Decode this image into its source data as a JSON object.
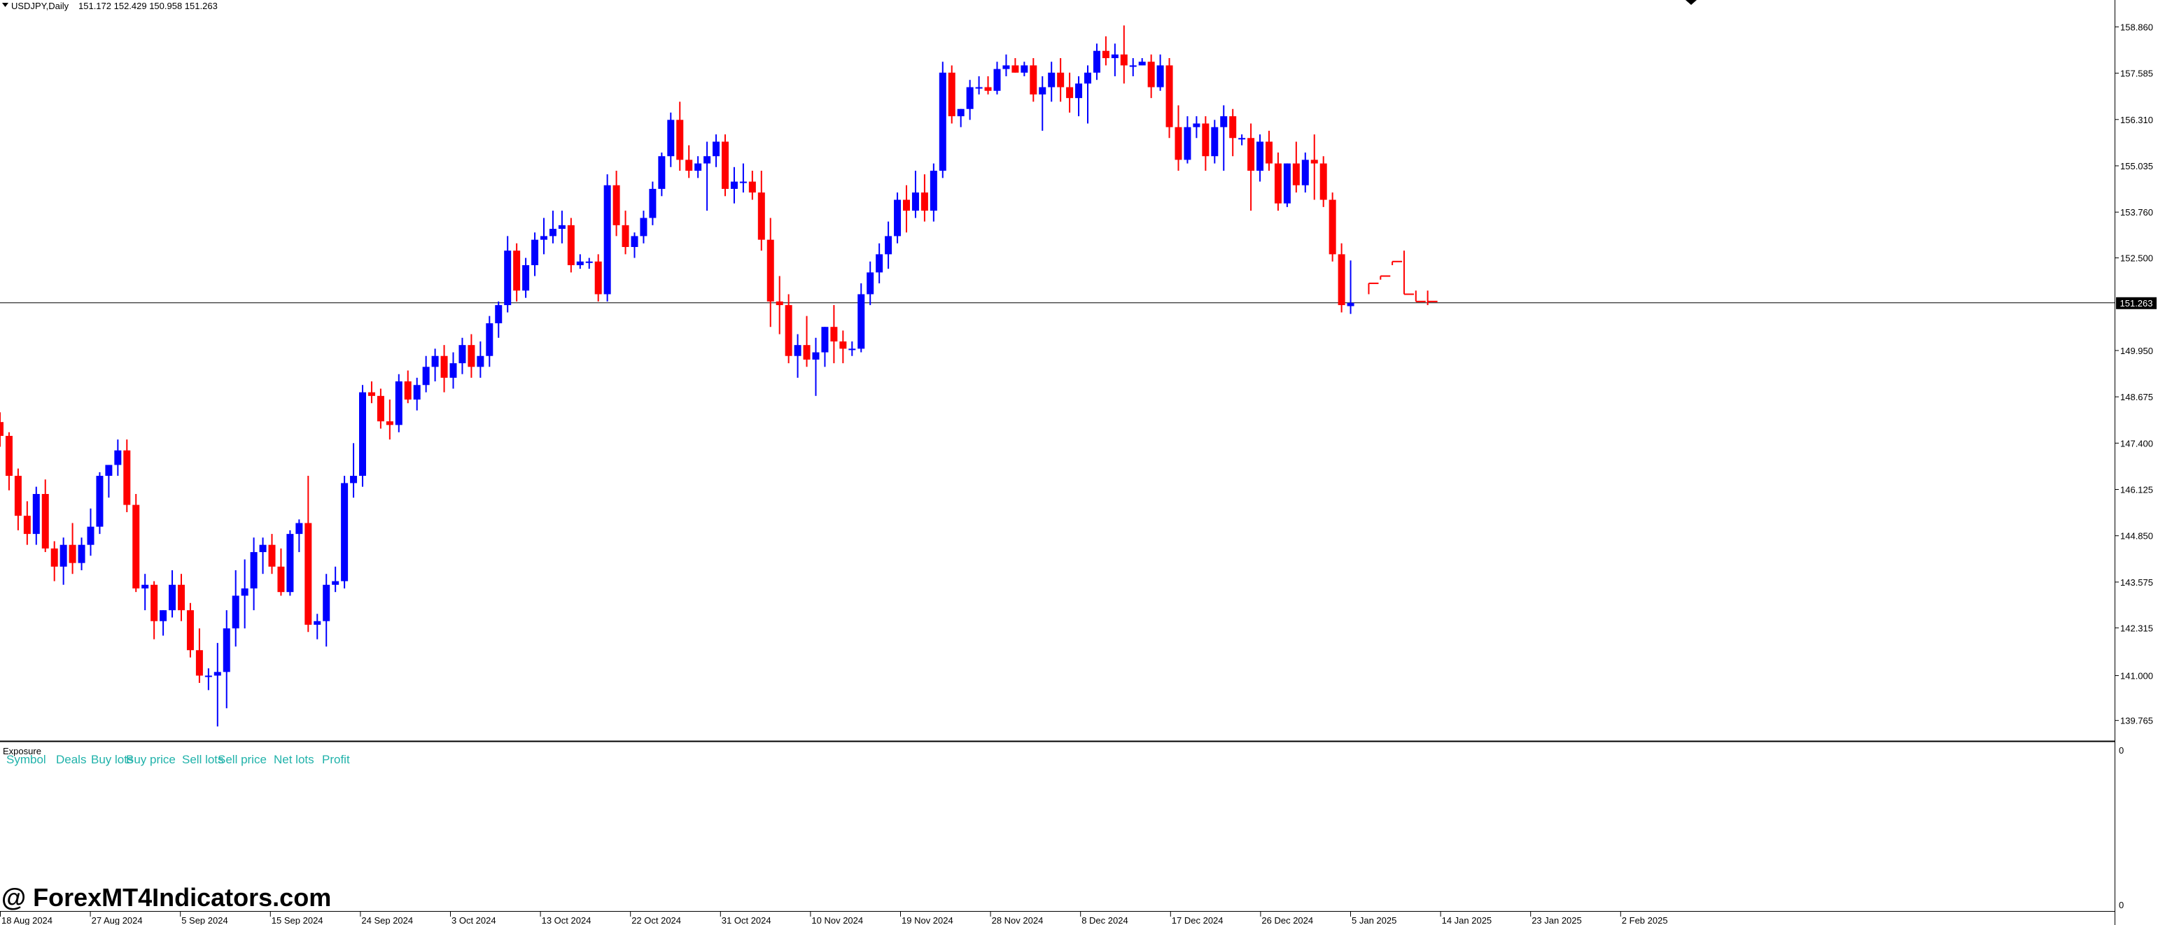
{
  "chart_header": {
    "symbol": "USDJPY,Daily",
    "ohlc": "151.172 152.429 150.958 151.263"
  },
  "current_price_label": "151.263",
  "indicator_panel": {
    "title": "Exposure",
    "columns": [
      "Symbol",
      "Deals",
      "Buy lots",
      "Buy price",
      "Sell lots",
      "Sell price",
      "Net lots",
      "Profit"
    ],
    "scale_top": "0",
    "scale_bottom": "0"
  },
  "watermark": "@ ForexMT4Indicators.com",
  "colors": {
    "bull": "#0000ff",
    "bear": "#ff0000",
    "background": "#ffffff",
    "axis": "#000000",
    "indicator_text": "#20b2aa"
  },
  "chart_data": {
    "type": "candlestick",
    "title": "USDJPY,Daily",
    "ylim": [
      139.2,
      159.6
    ],
    "y_ticks": [
      "158.860",
      "157.585",
      "156.310",
      "155.035",
      "153.760",
      "152.500",
      "149.950",
      "148.675",
      "147.400",
      "146.125",
      "144.850",
      "143.575",
      "142.315",
      "141.000",
      "139.765"
    ],
    "x_ticks": [
      "18 Aug 2024",
      "27 Aug 2024",
      "5 Sep 2024",
      "15 Sep 2024",
      "24 Sep 2024",
      "3 Oct 2024",
      "13 Oct 2024",
      "22 Oct 2024",
      "31 Oct 2024",
      "10 Nov 2024",
      "19 Nov 2024",
      "28 Nov 2024",
      "8 Dec 2024",
      "17 Dec 2024",
      "26 Dec 2024",
      "5 Jan 2025",
      "14 Jan 2025",
      "23 Jan 2025",
      "2 Feb 2025"
    ],
    "current_price": 151.263,
    "candles": [
      [
        147.98,
        148.25,
        147.3,
        147.6
      ],
      [
        147.6,
        147.7,
        146.1,
        146.5
      ],
      [
        146.5,
        146.7,
        145.0,
        145.4
      ],
      [
        145.4,
        145.8,
        144.6,
        144.9
      ],
      [
        144.9,
        146.2,
        144.6,
        146.0
      ],
      [
        146.0,
        146.4,
        144.4,
        144.5
      ],
      [
        144.5,
        144.7,
        143.6,
        144.0
      ],
      [
        144.0,
        144.8,
        143.5,
        144.6
      ],
      [
        144.6,
        145.2,
        143.8,
        144.1
      ],
      [
        144.1,
        144.8,
        143.9,
        144.6
      ],
      [
        144.6,
        145.6,
        144.3,
        145.1
      ],
      [
        145.1,
        146.6,
        144.9,
        146.5
      ],
      [
        146.5,
        146.8,
        145.9,
        146.8
      ],
      [
        146.8,
        147.5,
        146.5,
        147.2
      ],
      [
        147.2,
        147.5,
        145.5,
        145.7
      ],
      [
        145.7,
        146.0,
        143.3,
        143.4
      ],
      [
        143.4,
        143.8,
        142.8,
        143.5
      ],
      [
        143.5,
        143.6,
        142.0,
        142.5
      ],
      [
        142.5,
        142.8,
        142.1,
        142.8
      ],
      [
        142.8,
        143.9,
        142.6,
        143.5
      ],
      [
        143.5,
        143.8,
        142.5,
        142.8
      ],
      [
        142.8,
        143.0,
        141.5,
        141.7
      ],
      [
        141.7,
        142.3,
        140.8,
        141.0
      ],
      [
        141.0,
        141.2,
        140.6,
        141.0
      ],
      [
        141.0,
        141.9,
        139.6,
        141.1
      ],
      [
        141.1,
        142.8,
        140.1,
        142.3
      ],
      [
        142.3,
        143.9,
        141.8,
        143.2
      ],
      [
        143.2,
        144.2,
        142.3,
        143.4
      ],
      [
        143.4,
        144.8,
        142.8,
        144.4
      ],
      [
        144.4,
        144.8,
        143.8,
        144.6
      ],
      [
        144.6,
        144.9,
        143.8,
        144.0
      ],
      [
        144.0,
        144.5,
        143.2,
        143.3
      ],
      [
        143.3,
        145.0,
        143.2,
        144.9
      ],
      [
        144.9,
        145.3,
        144.4,
        145.2
      ],
      [
        145.2,
        146.5,
        142.2,
        142.4
      ],
      [
        142.4,
        142.7,
        142.0,
        142.5
      ],
      [
        142.5,
        143.8,
        141.8,
        143.5
      ],
      [
        143.5,
        144.0,
        143.3,
        143.6
      ],
      [
        143.6,
        146.5,
        143.4,
        146.3
      ],
      [
        146.3,
        147.4,
        145.9,
        146.5
      ],
      [
        146.5,
        149.0,
        146.2,
        148.8
      ],
      [
        148.8,
        149.1,
        148.5,
        148.7
      ],
      [
        148.7,
        148.9,
        147.8,
        148.0
      ],
      [
        148.0,
        148.6,
        147.5,
        147.9
      ],
      [
        147.9,
        149.3,
        147.7,
        149.1
      ],
      [
        149.1,
        149.4,
        148.5,
        148.6
      ],
      [
        148.6,
        149.2,
        148.3,
        149.0
      ],
      [
        149.0,
        149.8,
        148.8,
        149.5
      ],
      [
        149.5,
        150.0,
        149.1,
        149.8
      ],
      [
        149.8,
        150.1,
        148.8,
        149.2
      ],
      [
        149.2,
        149.9,
        148.9,
        149.6
      ],
      [
        149.6,
        150.3,
        149.3,
        150.1
      ],
      [
        150.1,
        150.4,
        149.2,
        149.5
      ],
      [
        149.5,
        150.2,
        149.2,
        149.8
      ],
      [
        149.8,
        150.9,
        149.5,
        150.7
      ],
      [
        150.7,
        151.3,
        150.3,
        151.2
      ],
      [
        151.2,
        153.1,
        151.0,
        152.7
      ],
      [
        152.7,
        152.9,
        151.3,
        151.6
      ],
      [
        151.6,
        152.5,
        151.4,
        152.3
      ],
      [
        152.3,
        153.2,
        152.0,
        153.0
      ],
      [
        153.0,
        153.6,
        152.6,
        153.1
      ],
      [
        153.1,
        153.8,
        152.9,
        153.3
      ],
      [
        153.3,
        153.8,
        152.9,
        153.4
      ],
      [
        153.4,
        153.6,
        152.1,
        152.3
      ],
      [
        152.3,
        152.6,
        152.2,
        152.4
      ],
      [
        152.4,
        152.5,
        152.2,
        152.4
      ],
      [
        152.4,
        152.6,
        151.3,
        151.5
      ],
      [
        151.5,
        154.8,
        151.3,
        154.5
      ],
      [
        154.5,
        154.9,
        153.1,
        153.4
      ],
      [
        153.4,
        153.8,
        152.6,
        152.8
      ],
      [
        152.8,
        153.2,
        152.5,
        153.1
      ],
      [
        153.1,
        153.8,
        152.9,
        153.6
      ],
      [
        153.6,
        154.6,
        153.4,
        154.4
      ],
      [
        154.4,
        155.4,
        154.2,
        155.3
      ],
      [
        155.3,
        156.5,
        155.0,
        156.3
      ],
      [
        156.3,
        156.8,
        154.9,
        155.2
      ],
      [
        155.2,
        155.6,
        154.7,
        154.9
      ],
      [
        154.9,
        155.3,
        154.7,
        155.1
      ],
      [
        155.1,
        155.7,
        153.8,
        155.3
      ],
      [
        155.3,
        155.9,
        155.0,
        155.7
      ],
      [
        155.7,
        155.9,
        154.2,
        154.4
      ],
      [
        154.4,
        155.0,
        154.0,
        154.6
      ],
      [
        154.6,
        155.1,
        154.3,
        154.6
      ],
      [
        154.6,
        154.9,
        154.1,
        154.3
      ],
      [
        154.3,
        154.9,
        152.7,
        153.0
      ],
      [
        153.0,
        153.6,
        150.6,
        151.3
      ],
      [
        151.3,
        152.0,
        150.4,
        151.2
      ],
      [
        151.2,
        151.5,
        149.6,
        149.8
      ],
      [
        149.8,
        150.4,
        149.2,
        150.1
      ],
      [
        150.1,
        150.9,
        149.5,
        149.7
      ],
      [
        149.7,
        150.3,
        148.7,
        149.9
      ],
      [
        149.9,
        150.6,
        149.5,
        150.6
      ],
      [
        150.6,
        151.2,
        149.6,
        150.2
      ],
      [
        150.2,
        150.5,
        149.6,
        150.0
      ],
      [
        150.0,
        150.2,
        149.8,
        150.0
      ],
      [
        150.0,
        151.8,
        149.9,
        151.5
      ],
      [
        151.5,
        152.4,
        151.2,
        152.1
      ],
      [
        152.1,
        152.9,
        151.8,
        152.6
      ],
      [
        152.6,
        153.5,
        152.2,
        153.1
      ],
      [
        153.1,
        154.3,
        152.9,
        154.1
      ],
      [
        154.1,
        154.5,
        153.2,
        153.8
      ],
      [
        153.8,
        154.9,
        153.6,
        154.3
      ],
      [
        154.3,
        154.8,
        153.5,
        153.8
      ],
      [
        153.8,
        155.1,
        153.5,
        154.9
      ],
      [
        154.9,
        157.9,
        154.7,
        157.6
      ],
      [
        157.6,
        157.8,
        156.2,
        156.4
      ],
      [
        156.4,
        156.6,
        156.1,
        156.6
      ],
      [
        156.6,
        157.4,
        156.3,
        157.2
      ],
      [
        157.2,
        157.5,
        157.0,
        157.2
      ],
      [
        157.2,
        157.5,
        157.0,
        157.1
      ],
      [
        157.1,
        157.9,
        157.0,
        157.7
      ],
      [
        157.7,
        158.1,
        157.5,
        157.8
      ],
      [
        157.8,
        158.0,
        157.6,
        157.6
      ],
      [
        157.6,
        157.9,
        157.5,
        157.8
      ],
      [
        157.8,
        158.0,
        156.8,
        157.0
      ],
      [
        157.0,
        157.5,
        156.0,
        157.2
      ],
      [
        157.2,
        157.9,
        156.8,
        157.6
      ],
      [
        157.6,
        158.0,
        156.8,
        157.2
      ],
      [
        157.2,
        157.6,
        156.5,
        156.9
      ],
      [
        156.9,
        157.5,
        156.4,
        157.3
      ],
      [
        157.3,
        157.8,
        156.2,
        157.6
      ],
      [
        157.6,
        158.4,
        157.4,
        158.2
      ],
      [
        158.2,
        158.6,
        157.8,
        158.0
      ],
      [
        158.0,
        158.4,
        157.5,
        158.1
      ],
      [
        158.1,
        158.9,
        157.3,
        157.8
      ],
      [
        157.8,
        158.0,
        157.5,
        157.8
      ],
      [
        157.8,
        158.0,
        157.8,
        157.9
      ],
      [
        157.9,
        158.1,
        156.9,
        157.2
      ],
      [
        157.2,
        158.1,
        157.1,
        157.8
      ],
      [
        157.8,
        158.0,
        155.8,
        156.1
      ],
      [
        156.1,
        156.7,
        154.9,
        155.2
      ],
      [
        155.2,
        156.4,
        155.1,
        156.1
      ],
      [
        156.1,
        156.4,
        155.8,
        156.2
      ],
      [
        156.2,
        156.4,
        154.9,
        155.3
      ],
      [
        155.3,
        156.3,
        155.1,
        156.1
      ],
      [
        156.1,
        156.7,
        154.9,
        156.4
      ],
      [
        156.4,
        156.6,
        155.3,
        155.8
      ],
      [
        155.8,
        155.9,
        155.6,
        155.8
      ],
      [
        155.8,
        156.2,
        153.8,
        154.9
      ],
      [
        154.9,
        155.9,
        154.6,
        155.7
      ],
      [
        155.7,
        156.0,
        154.9,
        155.1
      ],
      [
        155.1,
        155.4,
        153.8,
        154.0
      ],
      [
        154.0,
        155.1,
        153.9,
        155.1
      ],
      [
        155.1,
        155.7,
        154.3,
        154.5
      ],
      [
        154.5,
        155.4,
        154.3,
        155.2
      ],
      [
        155.2,
        155.9,
        154.1,
        155.1
      ],
      [
        155.1,
        155.3,
        153.9,
        154.1
      ],
      [
        154.1,
        154.3,
        152.4,
        152.6
      ],
      [
        152.6,
        152.9,
        151.0,
        151.2
      ],
      [
        151.172,
        152.429,
        150.958,
        151.263
      ]
    ],
    "forecast": [
      [
        151.4,
        151.8,
        151.5,
        151.8
      ],
      [
        151.8,
        152.0,
        151.9,
        152.0
      ],
      [
        152.0,
        152.4,
        152.3,
        152.4
      ],
      [
        152.3,
        152.7,
        151.5,
        151.5
      ],
      [
        151.5,
        151.6,
        151.3,
        151.3
      ],
      [
        151.3,
        151.6,
        151.2,
        151.3
      ]
    ]
  }
}
